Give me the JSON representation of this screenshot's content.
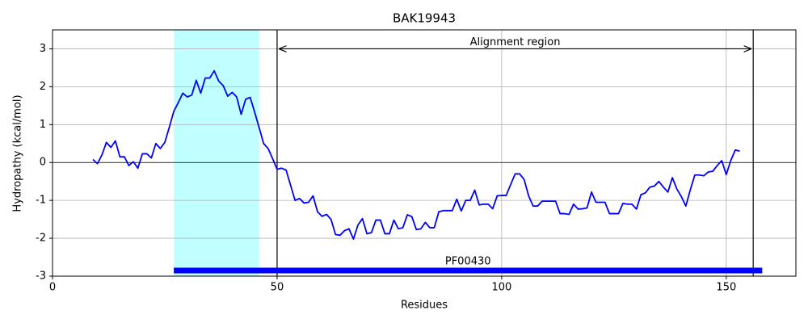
{
  "chart_data": {
    "type": "line",
    "title": "BAK19943",
    "xlabel": "Residues",
    "ylabel": "Hydropathy (kcal/mol)",
    "xlim": [
      0,
      165.5
    ],
    "ylim": [
      -3,
      3.5
    ],
    "xticks": [
      0,
      50,
      100,
      150
    ],
    "yticks": [
      -3,
      -2,
      -1,
      0,
      1,
      2,
      3
    ],
    "grid": true,
    "zero_line": 0,
    "color": "#0000ff",
    "x": [
      9,
      10,
      11,
      12,
      13,
      14,
      15,
      16,
      17,
      18,
      19,
      20,
      21,
      22,
      23,
      24,
      25,
      26,
      27,
      28,
      29,
      30,
      31,
      32,
      33,
      34,
      35,
      36,
      37,
      38,
      39,
      40,
      41,
      42,
      43,
      44,
      45,
      46,
      47,
      48,
      49,
      50,
      51,
      52,
      53,
      54,
      55,
      56,
      57,
      58,
      59,
      60,
      61,
      62,
      63,
      64,
      65,
      66,
      67,
      68,
      69,
      70,
      71,
      72,
      73,
      74,
      75,
      76,
      77,
      78,
      79,
      80,
      81,
      82,
      83,
      84,
      85,
      86,
      87,
      88,
      89,
      90,
      91,
      92,
      93,
      94,
      95,
      96,
      97,
      98,
      99,
      100,
      101,
      102,
      103,
      104,
      105,
      106,
      107,
      108,
      109,
      110,
      111,
      112,
      113,
      114,
      115,
      116,
      117,
      118,
      119,
      120,
      121,
      122,
      123,
      124,
      125,
      126,
      127,
      128,
      129,
      130,
      131,
      132,
      133,
      134,
      135,
      136,
      137,
      138,
      139,
      140,
      141,
      142,
      143,
      144,
      145,
      146,
      147,
      148,
      149,
      150,
      151,
      152,
      153
    ],
    "values": [
      0.08,
      -0.03,
      0.2,
      0.53,
      0.4,
      0.57,
      0.15,
      0.15,
      -0.08,
      0.02,
      -0.15,
      0.23,
      0.23,
      0.12,
      0.5,
      0.37,
      0.53,
      0.93,
      1.35,
      1.58,
      1.83,
      1.73,
      1.78,
      2.17,
      1.83,
      2.23,
      2.23,
      2.42,
      2.15,
      2.03,
      1.75,
      1.85,
      1.73,
      1.27,
      1.67,
      1.72,
      1.33,
      0.92,
      0.5,
      0.37,
      0.1,
      -0.18,
      -0.15,
      -0.2,
      -0.6,
      -1.0,
      -0.95,
      -1.07,
      -1.05,
      -0.88,
      -1.3,
      -1.42,
      -1.37,
      -1.5,
      -1.9,
      -1.92,
      -1.8,
      -1.75,
      -2.02,
      -1.65,
      -1.48,
      -1.88,
      -1.85,
      -1.52,
      -1.52,
      -1.88,
      -1.88,
      -1.52,
      -1.75,
      -1.72,
      -1.38,
      -1.43,
      -1.77,
      -1.75,
      -1.58,
      -1.72,
      -1.72,
      -1.3,
      -1.27,
      -1.27,
      -1.27,
      -0.97,
      -1.28,
      -1.0,
      -1.0,
      -0.73,
      -1.12,
      -1.1,
      -1.1,
      -1.22,
      -0.88,
      -0.87,
      -0.87,
      -0.58,
      -0.3,
      -0.3,
      -0.45,
      -0.88,
      -1.15,
      -1.15,
      -1.02,
      -1.02,
      -1.02,
      -1.02,
      -1.35,
      -1.35,
      -1.37,
      -1.1,
      -1.23,
      -1.22,
      -1.2,
      -0.78,
      -1.05,
      -1.05,
      -1.05,
      -1.35,
      -1.35,
      -1.35,
      -1.08,
      -1.1,
      -1.1,
      -1.23,
      -0.85,
      -0.8,
      -0.65,
      -0.62,
      -0.5,
      -0.65,
      -0.78,
      -0.4,
      -0.7,
      -0.9,
      -1.15,
      -0.72,
      -0.33,
      -0.33,
      -0.35,
      -0.25,
      -0.23,
      -0.08,
      0.05,
      -0.32,
      0.05,
      0.33,
      0.3
    ],
    "span": {
      "start": 27,
      "end": 46,
      "color": "#c0ffff"
    },
    "vlines": [
      50,
      156
    ],
    "annotation": {
      "text": "Alignment region",
      "start": 50,
      "end": 156,
      "y": 3
    },
    "domain": {
      "label": "PF00430",
      "start": 27,
      "end": 158,
      "y": -2.85,
      "color": "#0000ff"
    }
  }
}
